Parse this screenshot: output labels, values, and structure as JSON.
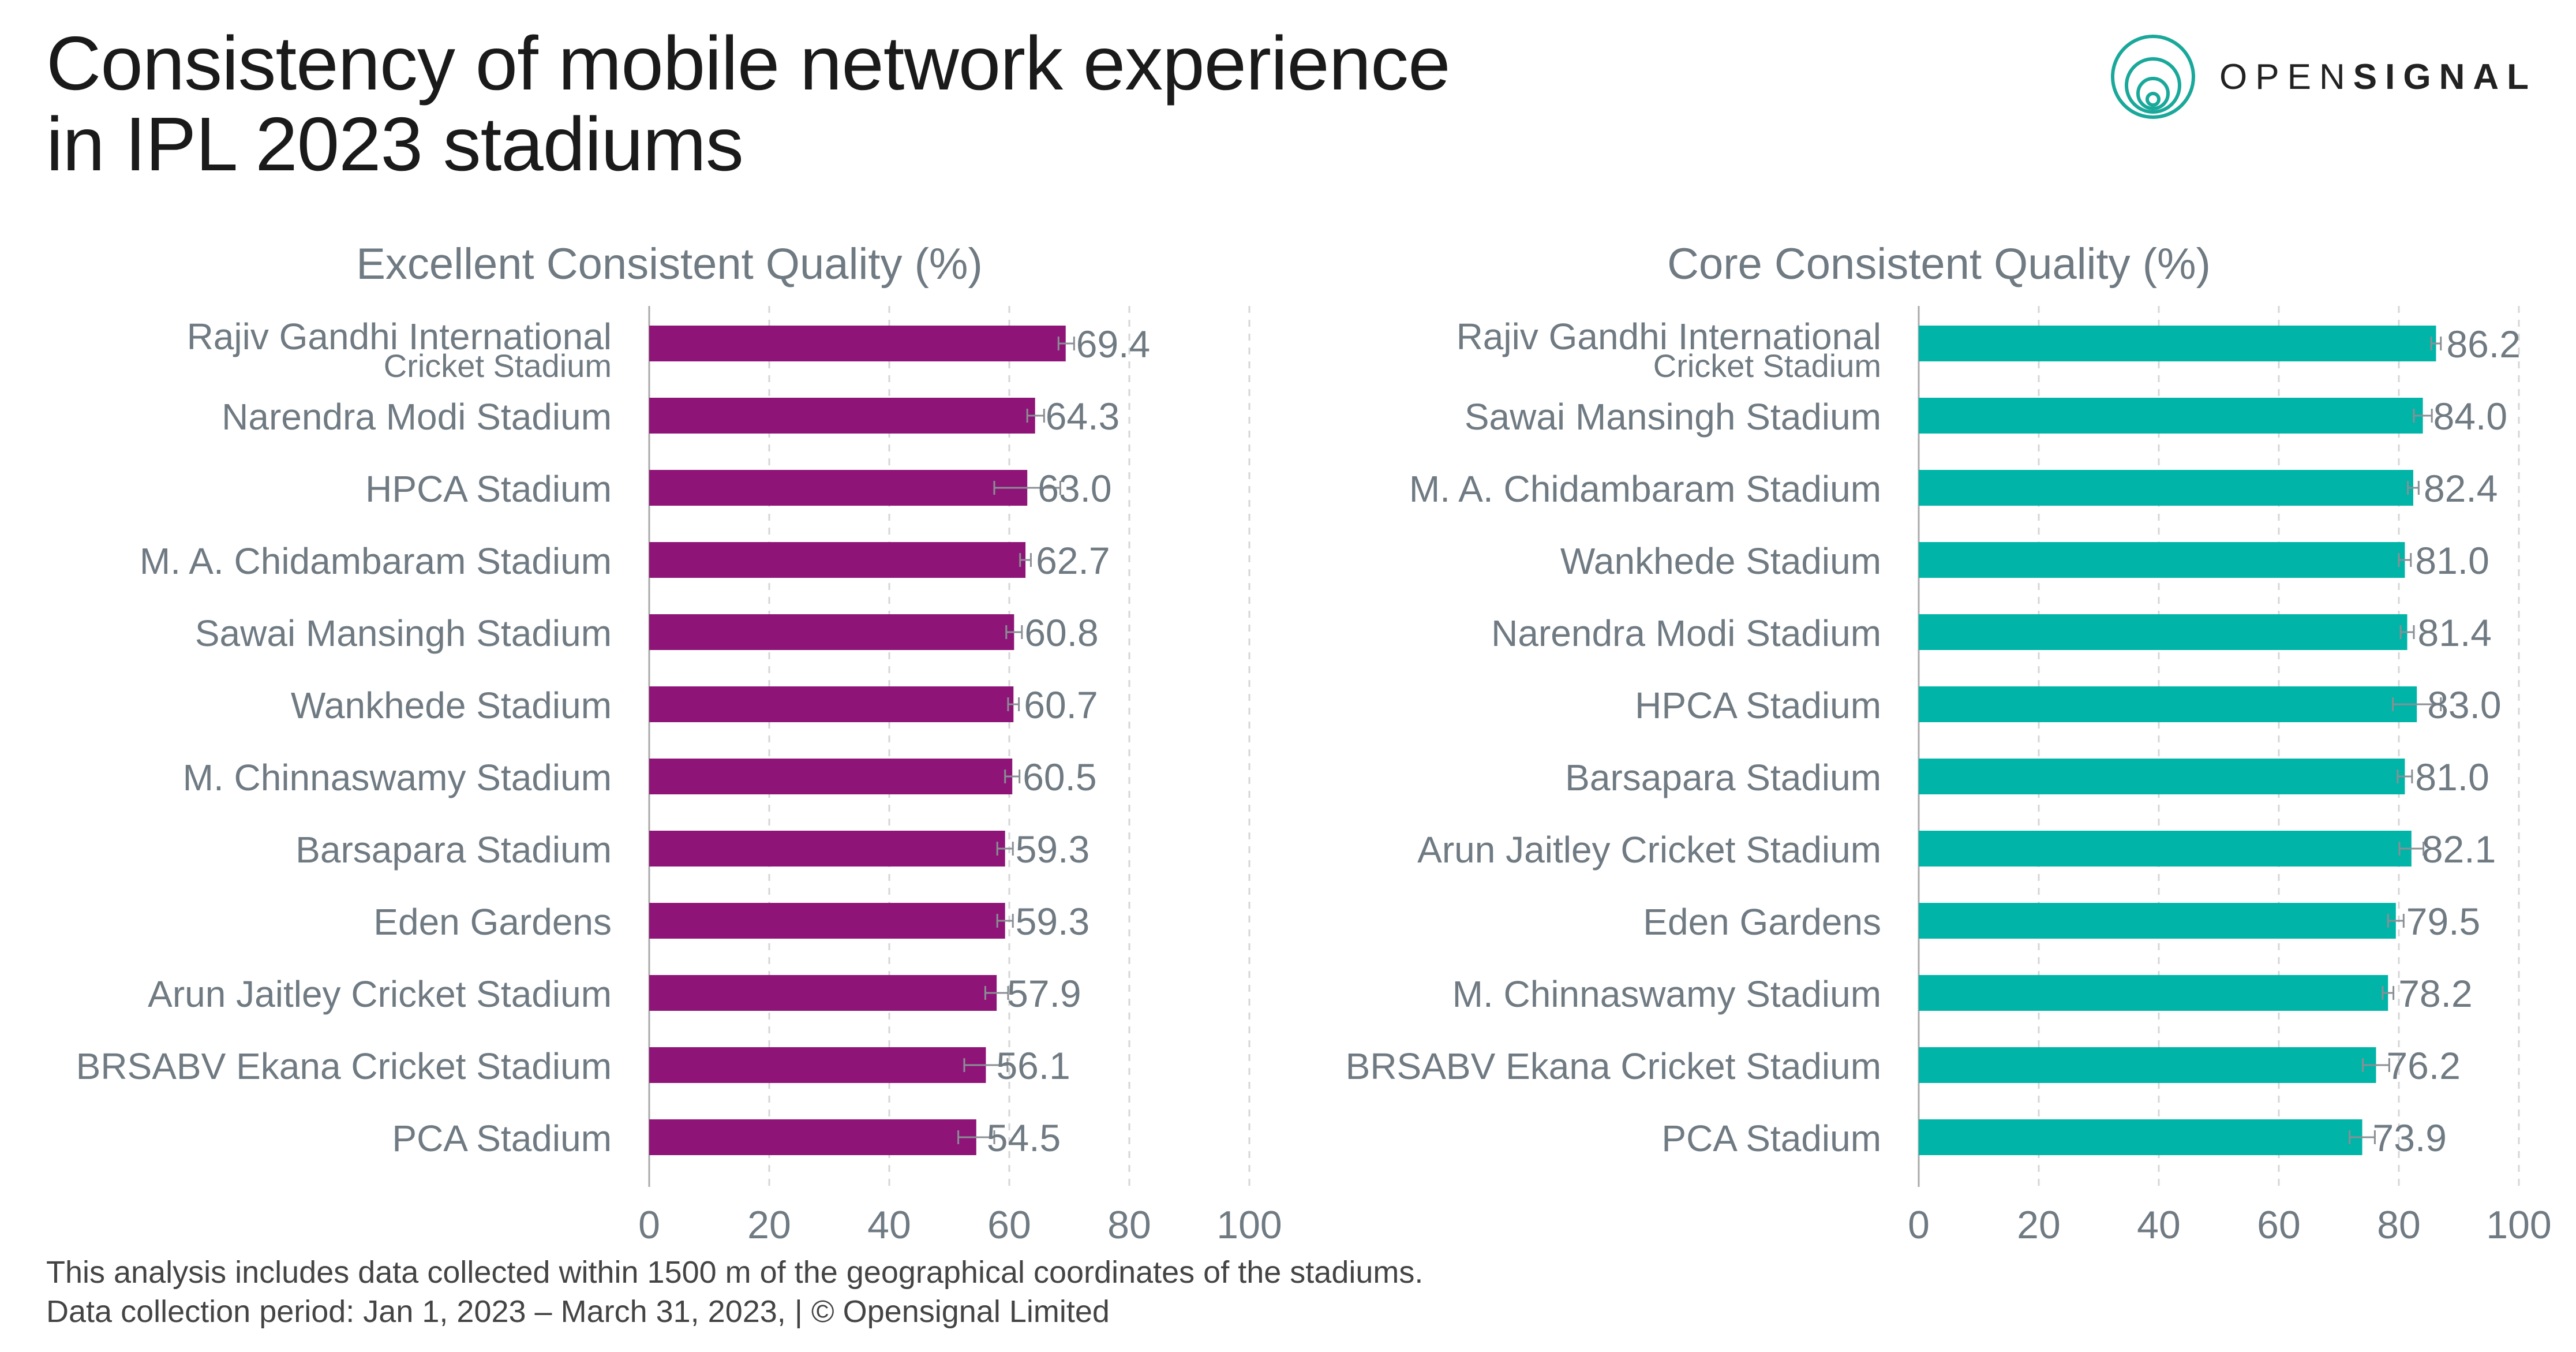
{
  "title_lines": [
    "Consistency of mobile network experience",
    "in IPL 2023 stadiums"
  ],
  "logo": {
    "text_light": "OPEN",
    "text_bold": "SIGNAL",
    "icon": "opensignal-logo-icon"
  },
  "footnote": [
    "This analysis includes data collected within 1500 m of the geographical coordinates of the stadiums.",
    "Data collection period: Jan 1, 2023 – March 31, 2023, | © Opensignal Limited"
  ],
  "chart_data": [
    {
      "type": "bar",
      "orientation": "horizontal",
      "title": "Excellent Consistent Quality (%)",
      "color": "#8e1478",
      "xlim": [
        0,
        100
      ],
      "xticks": [
        0,
        20,
        40,
        60,
        80,
        100
      ],
      "error_bars": true,
      "categories": [
        [
          "Rajiv Gandhi International",
          "Cricket Stadium"
        ],
        [
          "Narendra Modi Stadium"
        ],
        [
          "HPCA Stadium"
        ],
        [
          "M. A. Chidambaram Stadium"
        ],
        [
          "Sawai Mansingh Stadium"
        ],
        [
          "Wankhede Stadium"
        ],
        [
          "M. Chinnaswamy Stadium"
        ],
        [
          "Barsapara Stadium"
        ],
        [
          "Eden Gardens"
        ],
        [
          "Arun Jaitley Cricket Stadium"
        ],
        [
          "BRSABV Ekana Cricket Stadium"
        ],
        [
          "PCA Stadium"
        ]
      ],
      "values": [
        69.4,
        64.3,
        63.0,
        62.7,
        60.8,
        60.7,
        60.5,
        59.3,
        59.3,
        57.9,
        56.1,
        54.5
      ],
      "labels": [
        "69.4",
        "64.3",
        "63.0",
        "62.7",
        "60.8",
        "60.7",
        "60.5",
        "59.3",
        "59.3",
        "57.9",
        "56.1",
        "54.5"
      ],
      "ci_low": [
        68.2,
        63.0,
        57.5,
        61.8,
        59.5,
        59.8,
        59.3,
        58.0,
        58.0,
        56.0,
        52.5,
        51.5
      ],
      "ci_high": [
        70.8,
        65.8,
        68.5,
        63.6,
        62.1,
        61.6,
        61.7,
        60.6,
        60.6,
        59.8,
        59.7,
        57.5
      ]
    },
    {
      "type": "bar",
      "orientation": "horizontal",
      "title": "Core Consistent Quality (%)",
      "color": "#00b4a8",
      "xlim": [
        0,
        100
      ],
      "xticks": [
        0,
        20,
        40,
        60,
        80,
        100
      ],
      "error_bars": true,
      "categories": [
        [
          "Rajiv Gandhi International",
          "Cricket Stadium"
        ],
        [
          "Sawai Mansingh Stadium"
        ],
        [
          "M. A. Chidambaram Stadium"
        ],
        [
          "Wankhede Stadium"
        ],
        [
          "Narendra Modi Stadium"
        ],
        [
          "HPCA Stadium"
        ],
        [
          "Barsapara Stadium"
        ],
        [
          "Arun Jaitley Cricket Stadium"
        ],
        [
          "Eden Gardens"
        ],
        [
          "M. Chinnaswamy Stadium"
        ],
        [
          "BRSABV Ekana Cricket Stadium"
        ],
        [
          "PCA Stadium"
        ]
      ],
      "values": [
        86.2,
        84.0,
        82.4,
        81.0,
        81.4,
        83.0,
        81.0,
        82.1,
        79.5,
        78.2,
        76.2,
        73.9
      ],
      "labels": [
        "86.2",
        "84.0",
        "82.4",
        "81.0",
        "81.4",
        "83.0",
        "81.0",
        "82.1",
        "79.5",
        "78.2",
        "76.2",
        "73.9"
      ],
      "ci_low": [
        85.4,
        82.5,
        81.5,
        80.0,
        80.3,
        79.0,
        79.8,
        80.1,
        78.2,
        77.3,
        74.0,
        71.8
      ],
      "ci_high": [
        87.0,
        85.5,
        83.3,
        82.0,
        82.5,
        87.0,
        82.2,
        84.1,
        80.8,
        79.1,
        78.4,
        76.0
      ]
    }
  ]
}
